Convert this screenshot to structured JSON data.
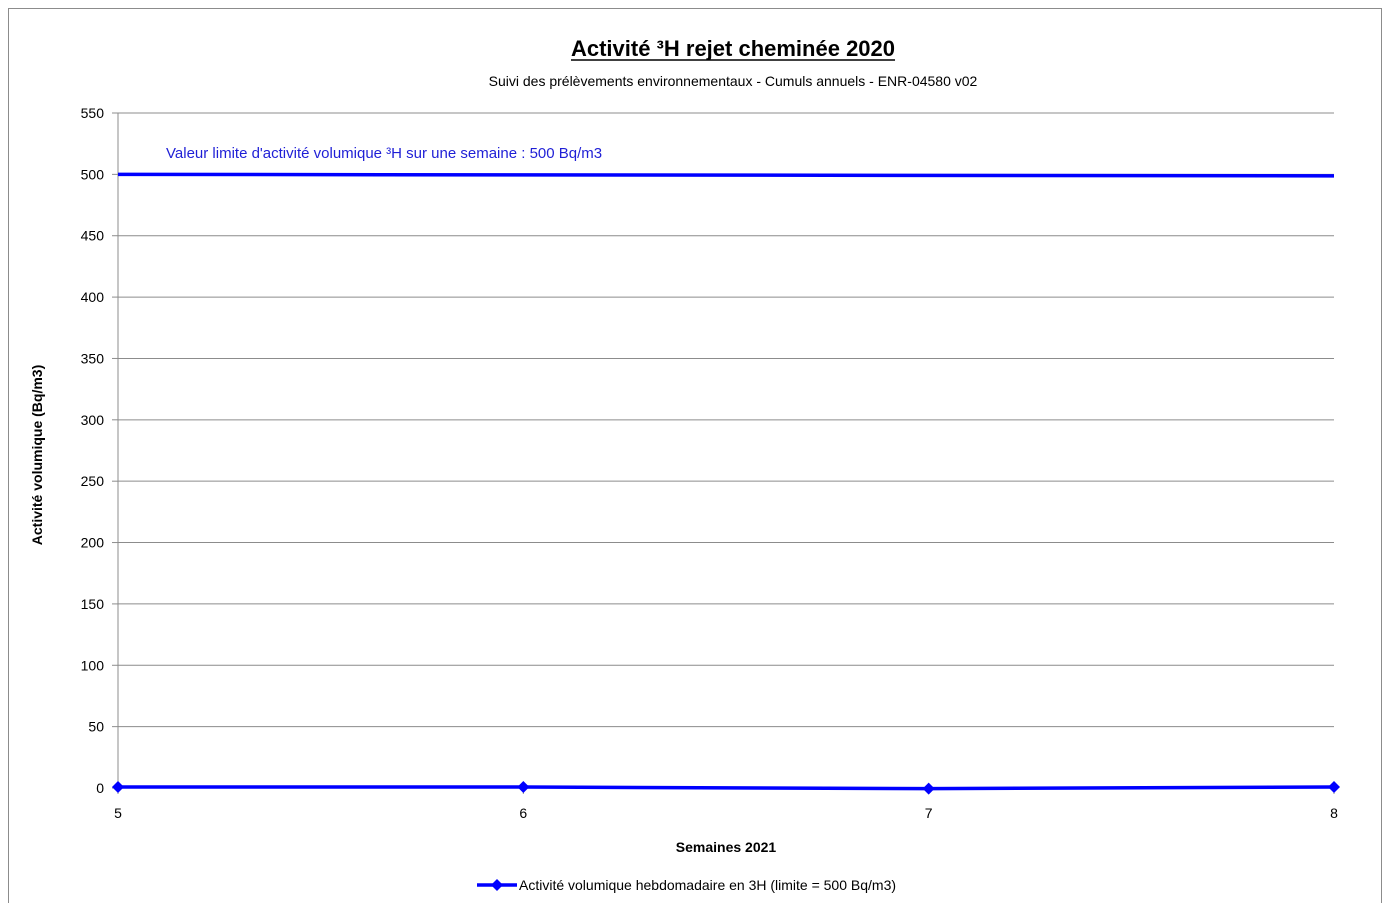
{
  "chart_data": {
    "type": "line",
    "title": "Activité ³H rejet cheminée 2020",
    "subtitle": "Suivi des prélèvements environnementaux - Cumuls annuels - ENR-04580 v02",
    "xlabel": "Semaines 2021",
    "ylabel": "Activité volumique (Bq/m3)",
    "ylim": [
      0,
      550
    ],
    "yticks": [
      0,
      50,
      100,
      150,
      200,
      250,
      300,
      350,
      400,
      450,
      500,
      550
    ],
    "xlim": [
      5,
      8
    ],
    "xticks": [
      5,
      6,
      7,
      8
    ],
    "grid": true,
    "legend_position": "bottom",
    "series": [
      {
        "name": "Activité volumique hebdomadaire en 3H  (limite = 500 Bq/m3)",
        "color": "#0000ff",
        "marker": "diamond",
        "x": [
          5,
          6,
          7,
          8
        ],
        "y": [
          0.8,
          0.8,
          -0.5,
          0.8
        ]
      }
    ],
    "limit_line": {
      "value": 500,
      "color": "#0000ff",
      "label": "Valeur limite d'activité volumique ³H  sur une semaine : 500 Bq/m3"
    }
  }
}
